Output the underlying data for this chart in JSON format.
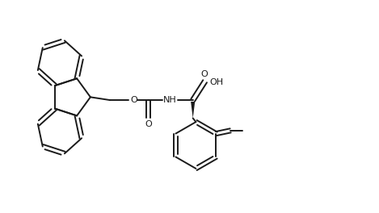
{
  "bg_color": "#ffffff",
  "line_color": "#1a1a1a",
  "lw": 1.4,
  "figsize": [
    4.69,
    2.64
  ],
  "dpi": 100,
  "xlim": [
    0,
    10
  ],
  "ylim": [
    0,
    5.6
  ]
}
